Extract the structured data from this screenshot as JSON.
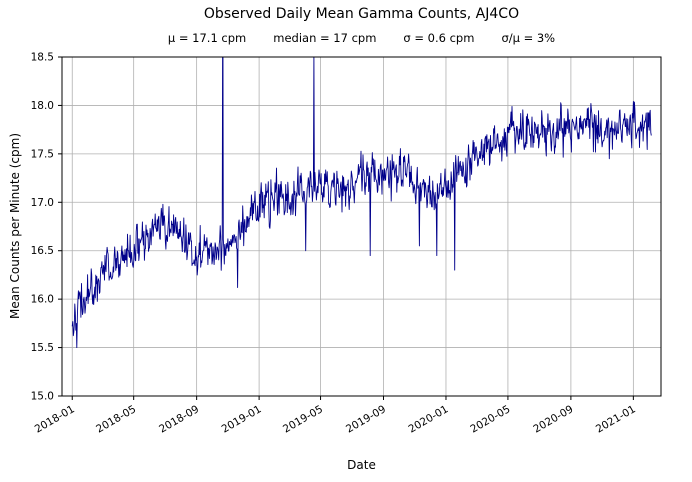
{
  "chart_data": {
    "type": "line",
    "title": "Observed Daily Mean Gamma Counts, AJ4CO",
    "stats": {
      "mean": "μ = 17.1 cpm",
      "median": "median = 17 cpm",
      "sigma": "σ = 0.6 cpm",
      "sigma_over_mean": "σ/μ = 3%"
    },
    "xlabel": "Date",
    "ylabel": "Mean Counts per Minute (cpm)",
    "ylim": [
      15.0,
      18.5
    ],
    "yticks": [
      15.0,
      15.5,
      16.0,
      16.5,
      17.0,
      17.5,
      18.0,
      18.5
    ],
    "xticks": [
      "2018-01",
      "2018-05",
      "2018-09",
      "2019-01",
      "2019-05",
      "2019-09",
      "2020-01",
      "2020-05",
      "2020-09",
      "2021-01"
    ],
    "xtick_dates": [
      "2018-01-01",
      "2018-05-01",
      "2018-09-01",
      "2019-01-01",
      "2019-05-01",
      "2019-09-01",
      "2020-01-01",
      "2020-05-01",
      "2020-09-01",
      "2021-01-01"
    ],
    "x_domain": [
      "2017-12-12",
      "2021-02-24"
    ],
    "grid": true,
    "grid_color": "#b0b0b0",
    "frame_color": "#000000",
    "background": "#ffffff",
    "series": [
      {
        "name": "daily-mean-gamma-counts",
        "color": "#00008B",
        "start_date": "2018-01-01",
        "end_date": "2021-02-05",
        "noise_sigma": 0.11,
        "noise_phi": 0.3,
        "seed": 42,
        "trend_keypoints": [
          [
            "2018-01-01",
            15.82
          ],
          [
            "2018-01-20",
            15.95
          ],
          [
            "2018-02-10",
            16.1
          ],
          [
            "2018-03-01",
            16.28
          ],
          [
            "2018-04-01",
            16.38
          ],
          [
            "2018-05-01",
            16.5
          ],
          [
            "2018-06-01",
            16.65
          ],
          [
            "2018-06-25",
            16.75
          ],
          [
            "2018-07-15",
            16.72
          ],
          [
            "2018-08-10",
            16.6
          ],
          [
            "2018-09-05",
            16.5
          ],
          [
            "2018-10-01",
            16.48
          ],
          [
            "2018-10-25",
            16.55
          ],
          [
            "2018-11-15",
            16.68
          ],
          [
            "2018-12-10",
            16.85
          ],
          [
            "2019-01-01",
            16.98
          ],
          [
            "2019-02-01",
            17.0
          ],
          [
            "2019-03-01",
            17.05
          ],
          [
            "2019-04-01",
            17.12
          ],
          [
            "2019-05-01",
            17.18
          ],
          [
            "2019-06-01",
            17.12
          ],
          [
            "2019-06-20",
            17.1
          ],
          [
            "2019-07-15",
            17.25
          ],
          [
            "2019-08-10",
            17.3
          ],
          [
            "2019-09-01",
            17.32
          ],
          [
            "2019-10-01",
            17.3
          ],
          [
            "2019-11-01",
            17.18
          ],
          [
            "2019-12-01",
            17.05
          ],
          [
            "2020-01-01",
            17.12
          ],
          [
            "2020-02-01",
            17.3
          ],
          [
            "2020-03-01",
            17.45
          ],
          [
            "2020-04-01",
            17.62
          ],
          [
            "2020-05-01",
            17.7
          ],
          [
            "2020-06-01",
            17.75
          ],
          [
            "2020-07-01",
            17.7
          ],
          [
            "2020-08-01",
            17.75
          ],
          [
            "2020-09-01",
            17.74
          ],
          [
            "2020-10-01",
            17.8
          ],
          [
            "2020-11-01",
            17.74
          ],
          [
            "2020-12-01",
            17.78
          ],
          [
            "2021-01-01",
            17.8
          ],
          [
            "2021-02-05",
            17.74
          ]
        ],
        "spikes": [
          {
            "date": "2018-10-22",
            "value": 19.6
          },
          {
            "date": "2018-11-20",
            "value": 16.12
          },
          {
            "date": "2019-04-02",
            "value": 16.5
          },
          {
            "date": "2019-04-18",
            "value": 18.55
          },
          {
            "date": "2019-06-12",
            "value": 16.9
          },
          {
            "date": "2019-08-06",
            "value": 16.45
          },
          {
            "date": "2019-11-10",
            "value": 16.55
          },
          {
            "date": "2019-12-14",
            "value": 16.45
          },
          {
            "date": "2020-01-18",
            "value": 16.3
          },
          {
            "date": "2020-11-15",
            "value": 17.45
          }
        ]
      }
    ]
  }
}
